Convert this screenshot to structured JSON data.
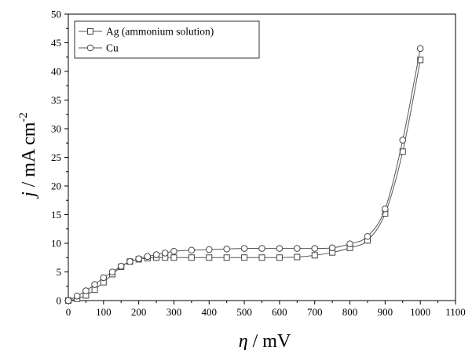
{
  "chart_data": {
    "type": "line",
    "title": "",
    "xlabel": {
      "symbol": "η",
      "unit": " / mV"
    },
    "ylabel": {
      "symbol": "j",
      "unit": " / mA cm",
      "sup": "-2"
    },
    "xlim": [
      0,
      1100
    ],
    "ylim": [
      0,
      50
    ],
    "xticks": [
      0,
      100,
      200,
      300,
      400,
      500,
      600,
      700,
      800,
      900,
      1000,
      1100
    ],
    "yticks": [
      0,
      5,
      10,
      15,
      20,
      25,
      30,
      35,
      40,
      45,
      50
    ],
    "grid": false,
    "legend_position": "top-left",
    "series": [
      {
        "name": "Ag (ammonium solution)",
        "marker": "square",
        "color": "#555555",
        "x": [
          0,
          25,
          50,
          75,
          100,
          125,
          150,
          175,
          200,
          225,
          250,
          275,
          300,
          350,
          400,
          450,
          500,
          550,
          600,
          650,
          700,
          750,
          800,
          850,
          900,
          950,
          1000
        ],
        "y": [
          0,
          0.3,
          0.9,
          1.9,
          3.2,
          4.6,
          5.9,
          6.8,
          7.2,
          7.4,
          7.5,
          7.5,
          7.5,
          7.5,
          7.5,
          7.5,
          7.5,
          7.5,
          7.5,
          7.6,
          7.9,
          8.4,
          9.2,
          10.5,
          15.2,
          26.0,
          42.0
        ]
      },
      {
        "name": "Cu",
        "marker": "circle",
        "color": "#555555",
        "x": [
          0,
          25,
          50,
          75,
          100,
          125,
          150,
          175,
          200,
          225,
          250,
          275,
          300,
          350,
          400,
          450,
          500,
          550,
          600,
          650,
          700,
          750,
          800,
          850,
          900,
          950,
          1000
        ],
        "y": [
          0,
          0.8,
          1.7,
          2.8,
          4.0,
          5.0,
          6.0,
          6.8,
          7.3,
          7.7,
          8.0,
          8.3,
          8.6,
          8.8,
          8.9,
          9.0,
          9.1,
          9.1,
          9.1,
          9.1,
          9.1,
          9.2,
          9.9,
          11.2,
          16.0,
          28.0,
          44.0
        ]
      }
    ]
  }
}
